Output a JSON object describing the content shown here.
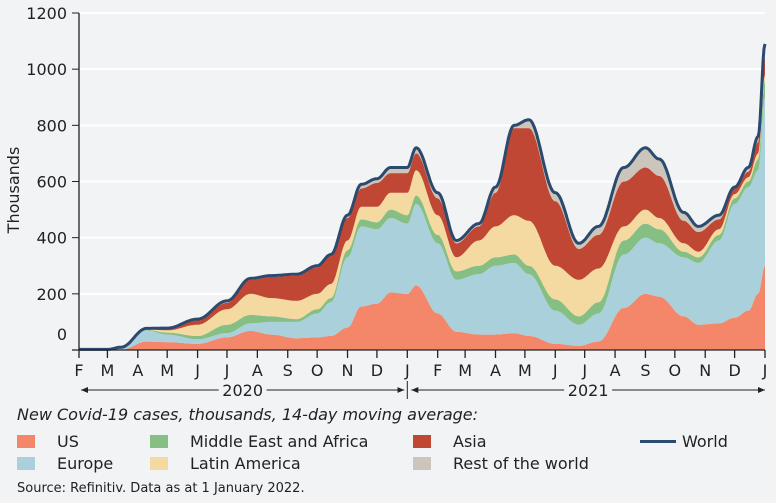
{
  "chart_data": {
    "type": "area",
    "stacked": true,
    "ylabel": "Thousands",
    "ylim": [
      0,
      1200
    ],
    "yticks": [
      0,
      200,
      400,
      600,
      800,
      1000,
      1200
    ],
    "grid": true,
    "xlim": [
      "2020-02-01",
      "2022-01-01"
    ],
    "month_labels": [
      "F",
      "M",
      "A",
      "M",
      "J",
      "J",
      "A",
      "S",
      "O",
      "N",
      "D",
      "J",
      "F",
      "M",
      "A",
      "M",
      "J",
      "J",
      "A",
      "S",
      "O",
      "N",
      "D",
      "J"
    ],
    "years": [
      "2020",
      "2021"
    ],
    "legend_title": "New Covid-19 cases, thousands, 14-day moving average:",
    "legend_placement": "bottom",
    "dates": [
      "2020-02-01",
      "2020-03-01",
      "2020-03-15",
      "2020-04-10",
      "2020-05-01",
      "2020-06-01",
      "2020-07-01",
      "2020-07-25",
      "2020-08-15",
      "2020-09-10",
      "2020-10-01",
      "2020-10-15",
      "2020-11-01",
      "2020-11-15",
      "2020-12-01",
      "2020-12-15",
      "2021-01-01",
      "2021-01-10",
      "2021-02-01",
      "2021-02-20",
      "2021-03-15",
      "2021-04-01",
      "2021-04-20",
      "2021-05-05",
      "2021-06-01",
      "2021-06-25",
      "2021-07-15",
      "2021-08-10",
      "2021-09-01",
      "2021-09-15",
      "2021-10-10",
      "2021-10-25",
      "2021-11-15",
      "2021-12-01",
      "2021-12-15",
      "2021-12-25",
      "2022-01-01"
    ],
    "series": [
      {
        "name": "US",
        "color": "#f4866a",
        "values": [
          0,
          0,
          1,
          30,
          28,
          22,
          45,
          68,
          55,
          42,
          45,
          50,
          80,
          155,
          165,
          205,
          200,
          230,
          130,
          65,
          55,
          55,
          60,
          50,
          22,
          15,
          30,
          150,
          200,
          190,
          120,
          90,
          95,
          115,
          140,
          200,
          300
        ]
      },
      {
        "name": "Europe",
        "color": "#a9d0db",
        "values": [
          0,
          1,
          6,
          40,
          27,
          16,
          15,
          27,
          45,
          58,
          85,
          120,
          250,
          285,
          265,
          265,
          250,
          290,
          250,
          185,
          215,
          245,
          250,
          220,
          118,
          75,
          100,
          190,
          200,
          190,
          210,
          220,
          295,
          405,
          440,
          440,
          600
        ]
      },
      {
        "name": "Middle East and Africa",
        "color": "#86bf84",
        "values": [
          0,
          0,
          1,
          2,
          7,
          12,
          30,
          30,
          20,
          10,
          15,
          15,
          25,
          25,
          25,
          30,
          30,
          30,
          30,
          30,
          30,
          30,
          30,
          30,
          40,
          30,
          40,
          50,
          50,
          50,
          20,
          20,
          20,
          20,
          20,
          40,
          60
        ]
      },
      {
        "name": "Latin America",
        "color": "#f4d9a0",
        "values": [
          0,
          0,
          0,
          2,
          8,
          40,
          55,
          75,
          65,
          65,
          55,
          50,
          35,
          45,
          55,
          60,
          80,
          90,
          70,
          50,
          90,
          110,
          140,
          160,
          120,
          130,
          120,
          50,
          50,
          40,
          30,
          20,
          20,
          15,
          15,
          20,
          20
        ]
      },
      {
        "name": "Asia",
        "color": "#c04733",
        "values": [
          2,
          1,
          1,
          2,
          6,
          15,
          23,
          50,
          75,
          90,
          95,
          100,
          80,
          65,
          85,
          70,
          70,
          60,
          60,
          50,
          50,
          120,
          310,
          330,
          230,
          110,
          120,
          160,
          150,
          150,
          80,
          70,
          35,
          20,
          20,
          40,
          60
        ]
      },
      {
        "name": "Rest of the world",
        "color": "#cbc5bc",
        "values": [
          0,
          0,
          1,
          1,
          2,
          5,
          7,
          5,
          5,
          5,
          5,
          5,
          10,
          15,
          15,
          20,
          20,
          20,
          20,
          10,
          10,
          20,
          10,
          30,
          30,
          20,
          30,
          50,
          70,
          60,
          30,
          20,
          15,
          5,
          15,
          20,
          50
        ]
      }
    ],
    "total": {
      "name": "World",
      "color": "#2c4a6e",
      "values": [
        2,
        2,
        10,
        77,
        78,
        110,
        175,
        255,
        265,
        270,
        300,
        340,
        480,
        590,
        610,
        650,
        650,
        720,
        560,
        390,
        450,
        580,
        800,
        820,
        560,
        380,
        440,
        650,
        720,
        680,
        490,
        440,
        480,
        580,
        650,
        760,
        1090
      ]
    }
  },
  "source": "Source: Refinitiv. Data as at 1 January 2022."
}
